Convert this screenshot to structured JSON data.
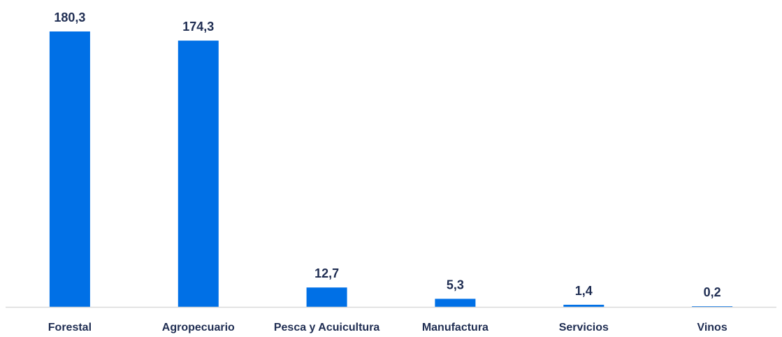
{
  "chart_data": {
    "type": "bar",
    "categories": [
      "Forestal",
      "Agropecuario",
      "Pesca y Acuicultura",
      "Manufactura",
      "Servicios",
      "Vinos"
    ],
    "values": [
      180.3,
      174.3,
      12.7,
      5.3,
      1.4,
      0.2
    ],
    "value_labels": [
      "180,3",
      "174,3",
      "12,7",
      "5,3",
      "1,4",
      "0,2"
    ],
    "ylim": [
      0,
      180.3
    ],
    "grid": false,
    "legend": "none",
    "bar_color": "#0070e6",
    "label_color": "#1f2d52",
    "axis_color": "#d9d9d9"
  }
}
